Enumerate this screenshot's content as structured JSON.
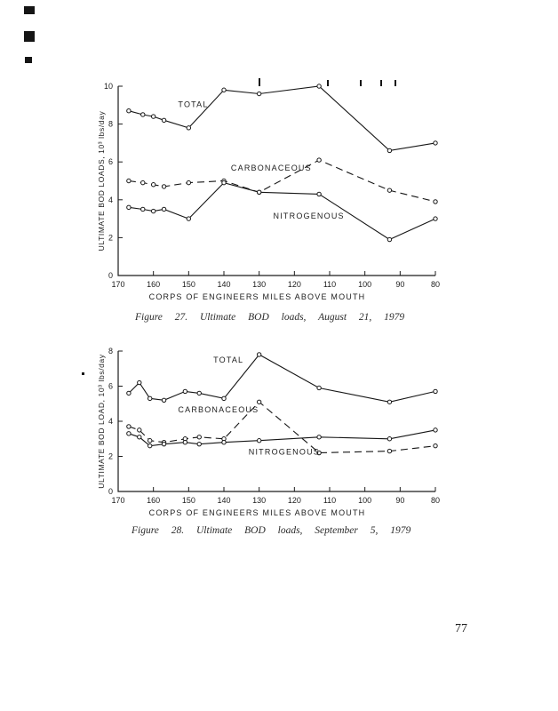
{
  "page": {
    "number": "77"
  },
  "figures": [
    {
      "caption": "Figure 27. Ultimate BOD loads, August 21, 1979"
    },
    {
      "caption": "Figure 28. Ultimate BOD loads, September 5, 1979"
    }
  ],
  "chart_data": [
    {
      "type": "line",
      "title": "",
      "xlabel": "CORPS OF ENGINEERS MILES ABOVE MOUTH",
      "ylabel": "ULTIMATE BOD LOADS, 10³ lbs/day",
      "xlim": [
        170,
        80
      ],
      "ylim": [
        0,
        10
      ],
      "xticks": [
        170,
        160,
        150,
        140,
        130,
        120,
        110,
        100,
        90,
        80
      ],
      "yticks": [
        0,
        2,
        4,
        6,
        8,
        10
      ],
      "grid": false,
      "legend_position": "inline-labels",
      "x": [
        167,
        163,
        160,
        157,
        150,
        140,
        130,
        113,
        93,
        80
      ],
      "series": [
        {
          "name": "TOTAL",
          "style": "solid",
          "marker": "circle",
          "values": [
            8.7,
            8.5,
            8.4,
            8.2,
            7.8,
            9.8,
            9.6,
            10.0,
            6.6,
            7.0
          ],
          "label_pos": {
            "x": 153,
            "y": 8.9
          }
        },
        {
          "name": "CARBONACEOUS",
          "style": "dashed",
          "marker": "circle",
          "values": [
            5.0,
            4.9,
            4.8,
            4.7,
            4.9,
            5.0,
            4.4,
            6.1,
            4.5,
            3.9
          ],
          "label_pos": {
            "x": 138,
            "y": 5.55
          }
        },
        {
          "name": "NITROGENOUS",
          "style": "solid",
          "marker": "circle",
          "values": [
            3.6,
            3.5,
            3.4,
            3.5,
            3.0,
            4.9,
            4.4,
            4.3,
            1.9,
            3.0
          ],
          "label_pos": {
            "x": 126,
            "y": 3.0
          }
        }
      ]
    },
    {
      "type": "line",
      "title": "",
      "xlabel": "CORPS OF ENGINEERS MILES ABOVE MOUTH",
      "ylabel": "ULTIMATE BOD LOAD, 10³ lbs/day",
      "xlim": [
        170,
        80
      ],
      "ylim": [
        0,
        8
      ],
      "xticks": [
        170,
        160,
        150,
        140,
        130,
        120,
        110,
        100,
        90,
        80
      ],
      "yticks": [
        0,
        2,
        4,
        6,
        8
      ],
      "grid": false,
      "legend_position": "inline-labels",
      "x": [
        167,
        164,
        161,
        157,
        151,
        147,
        140,
        130,
        113,
        93,
        80
      ],
      "series": [
        {
          "name": "TOTAL",
          "style": "solid",
          "marker": "circle",
          "values": [
            5.6,
            6.2,
            5.3,
            5.2,
            5.7,
            5.6,
            5.3,
            7.8,
            5.9,
            5.1,
            5.7
          ],
          "label_pos": {
            "x": 143,
            "y": 7.35
          }
        },
        {
          "name": "CARBONACEOUS",
          "style": "dashed",
          "marker": "circle",
          "values": [
            3.7,
            3.5,
            2.9,
            2.8,
            3.0,
            3.1,
            3.0,
            5.1,
            2.2,
            2.3,
            2.6
          ],
          "label_pos": {
            "x": 153,
            "y": 4.5
          }
        },
        {
          "name": "NITROGENOUS",
          "style": "solid",
          "marker": "circle",
          "values": [
            3.3,
            3.1,
            2.6,
            2.7,
            2.8,
            2.7,
            2.8,
            2.9,
            3.1,
            3.0,
            3.5
          ],
          "label_pos": {
            "x": 133,
            "y": 2.1
          }
        }
      ]
    }
  ]
}
